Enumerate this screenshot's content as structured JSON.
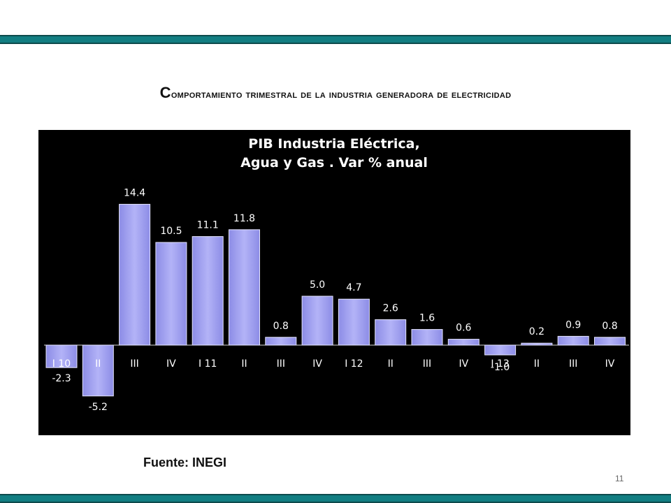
{
  "slide": {
    "title_first": "C",
    "title_rest": "omportamiento trimestral de la industria generadora de electricidad",
    "source": "Fuente: INEGI",
    "page_number": "11"
  },
  "colors": {
    "band": "#127e82",
    "bar": "#a6a6f2",
    "panel": "#000000",
    "text": "#ffffff"
  },
  "chart_data": {
    "type": "bar",
    "title": [
      "PIB Industria Eléctrica,",
      "Agua y Gas . Var % anual"
    ],
    "categories": [
      "I 10",
      "II",
      "III",
      "IV",
      "I 11",
      "II",
      "III",
      "IV",
      "I 12",
      "II",
      "III",
      "IV",
      "I 13",
      "II",
      "III",
      "IV"
    ],
    "values": [
      -2.3,
      -5.2,
      14.4,
      10.5,
      11.1,
      11.8,
      0.8,
      5.0,
      4.7,
      2.6,
      1.6,
      0.6,
      -1.0,
      0.2,
      0.9,
      0.8
    ],
    "labels": [
      "-2.3",
      "-5.2",
      "14.4",
      "10.5",
      "11.1",
      "11.8",
      "0.8",
      "5.0",
      "4.7",
      "2.6",
      "1.6",
      "0.6",
      "-1.0",
      "0.2",
      "0.9",
      "0.8"
    ],
    "grid": false,
    "legend": "none"
  }
}
